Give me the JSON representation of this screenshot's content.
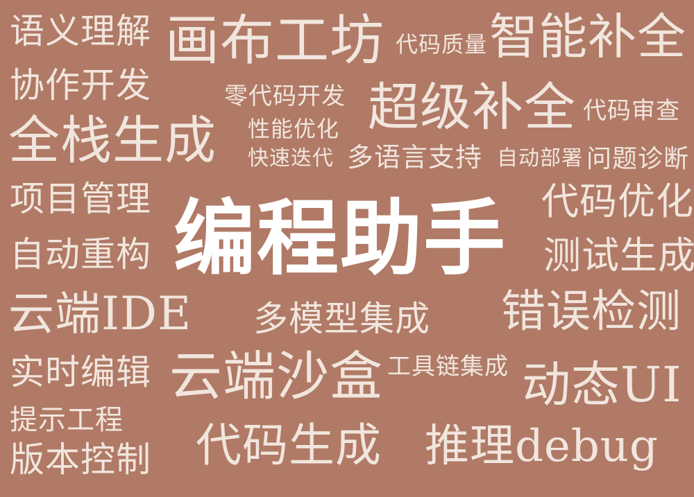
{
  "cloud": {
    "center_word": "编程助手",
    "words": [
      "语义理解",
      "画布工坊",
      "代码质量",
      "智能补全",
      "协作开发",
      "零代码开发",
      "超级补全",
      "代码审查",
      "全栈生成",
      "性能优化",
      "快速迭代",
      "多语言支持",
      "自动部署",
      "问题诊断",
      "项目管理",
      "代码优化",
      "自动重构",
      "测试生成",
      "云端IDE",
      "多模型集成",
      "错误检测",
      "实时编辑",
      "云端沙盒",
      "工具链集成",
      "动态UI",
      "提示工程",
      "版本控制",
      "代码生成",
      "推理debug"
    ]
  },
  "colors": {
    "background": "#b07a66",
    "text": "#f1e6de",
    "center_text": "#ffffff"
  }
}
